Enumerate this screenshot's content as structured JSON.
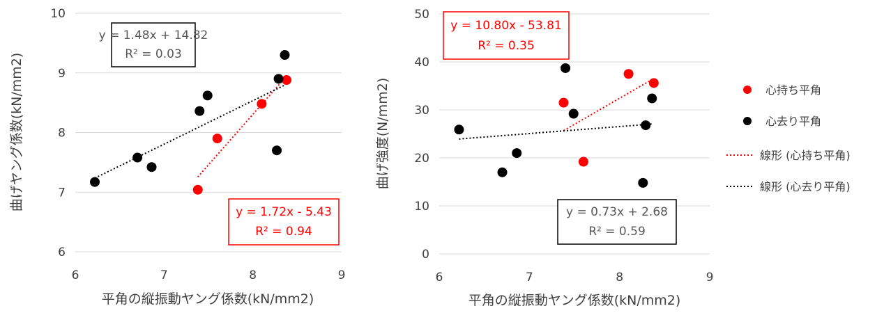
{
  "chart_data": [
    {
      "type": "scatter",
      "xlabel": "平角の縦振動ヤング係数(kN/mm2)",
      "ylabel": "曲げヤング係数(kN/mm2)",
      "xlim": [
        6,
        9
      ],
      "ylim": [
        6,
        10
      ],
      "xticks": [
        "6",
        "7",
        "8",
        "9"
      ],
      "yticks": [
        "6",
        "7",
        "8",
        "9",
        "10"
      ],
      "grid": "horizontal",
      "series": [
        {
          "name": "心持ち平角",
          "color": "#ff0000",
          "points": [
            [
              7.38,
              7.04
            ],
            [
              7.6,
              7.9
            ],
            [
              8.1,
              8.48
            ],
            [
              8.38,
              8.88
            ]
          ],
          "trend": {
            "x": [
              7.38,
              8.38
            ],
            "label": [
              "y = 1.72x - 5.43",
              "R² = 0.94"
            ]
          }
        },
        {
          "name": "心去り平角",
          "color": "#000000",
          "points": [
            [
              6.22,
              7.17
            ],
            [
              6.7,
              7.58
            ],
            [
              6.86,
              7.42
            ],
            [
              7.4,
              8.36
            ],
            [
              7.49,
              8.62
            ],
            [
              8.27,
              7.7
            ],
            [
              8.29,
              8.9
            ],
            [
              8.36,
              9.3
            ]
          ],
          "trend": {
            "x": [
              6.22,
              8.36
            ],
            "label": [
              "y = 0.73x + 2.68",
              "R² = 0.59"
            ]
          }
        }
      ]
    },
    {
      "type": "scatter",
      "xlabel": "平角の縦振動ヤング係数(kN/mm2)",
      "ylabel": "曲げ強度(N/mm2)",
      "xlim": [
        6,
        9
      ],
      "ylim": [
        0,
        50
      ],
      "xticks": [
        "6",
        "7",
        "8",
        "9"
      ],
      "yticks": [
        "0",
        "10",
        "20",
        "30",
        "40",
        "50"
      ],
      "grid": "horizontal",
      "series": [
        {
          "name": "心持ち平角",
          "color": "#ff0000",
          "points": [
            [
              7.38,
              31.5
            ],
            [
              7.6,
              19.2
            ],
            [
              8.1,
              37.5
            ],
            [
              8.38,
              35.6
            ]
          ],
          "trend": {
            "x": [
              7.38,
              8.38
            ],
            "label": [
              "y = 10.80x - 53.81",
              "R² = 0.35"
            ]
          }
        },
        {
          "name": "心去り平角",
          "color": "#000000",
          "points": [
            [
              6.22,
              25.9
            ],
            [
              6.7,
              17.0
            ],
            [
              6.86,
              21.0
            ],
            [
              7.4,
              38.7
            ],
            [
              7.49,
              29.2
            ],
            [
              8.26,
              14.8
            ],
            [
              8.29,
              26.8
            ],
            [
              8.36,
              32.4
            ]
          ],
          "trend": {
            "x": [
              6.22,
              8.36
            ],
            "label": [
              "y = 1.48x + 14.82",
              "R² = 0.03"
            ]
          }
        }
      ]
    }
  ],
  "legend": [
    {
      "label": "心持ち平角",
      "kind": "marker",
      "color": "#ff0000"
    },
    {
      "label": "心去り平角",
      "kind": "marker",
      "color": "#000000"
    },
    {
      "label": "線形 (心持ち平角)",
      "kind": "line",
      "color": "#ff0000"
    },
    {
      "label": "線形 (心去り平角)",
      "kind": "line",
      "color": "#000000"
    }
  ]
}
